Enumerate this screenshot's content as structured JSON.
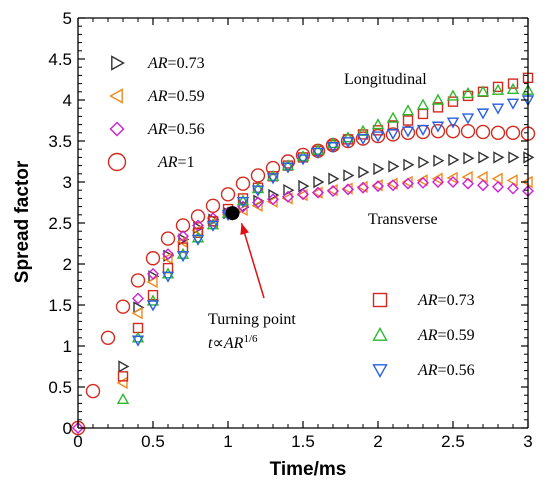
{
  "chart_data": {
    "type": "scatter",
    "xlabel": "Time/ms",
    "ylabel": "Spread factor",
    "xlim": [
      0,
      3
    ],
    "ylim": [
      0,
      5
    ],
    "xticks": [
      "0",
      "0.5",
      "1",
      "1.5",
      "2",
      "2.5",
      "3"
    ],
    "yticks": [
      "0",
      "0.5",
      "1",
      "1.5",
      "2",
      "2.5",
      "3",
      "3.5",
      "4",
      "4.5",
      "5"
    ],
    "grid": false,
    "legend_left": [
      {
        "series": "transverse_073",
        "prefix": "AR",
        "value": "=0.73"
      },
      {
        "series": "transverse_059",
        "prefix": "AR",
        "value": "=0.59"
      },
      {
        "series": "transverse_056",
        "prefix": "AR",
        "value": "=0.56"
      },
      {
        "series": "ar_1",
        "prefix": "AR",
        "value": "=1"
      }
    ],
    "legend_right": [
      {
        "series": "longitudinal_073",
        "prefix": "AR",
        "value": "=0.73"
      },
      {
        "series": "longitudinal_059",
        "prefix": "AR",
        "value": "=0.59"
      },
      {
        "series": "longitudinal_056",
        "prefix": "AR",
        "value": "=0.56"
      }
    ],
    "annotations": {
      "longitudinal": "Longitudinal",
      "transverse": "Transverse",
      "turning_point_line1": "Turning point",
      "turning_point_line2_t": "t",
      "turning_point_line2_prop": "∝",
      "turning_point_line2_ar": "AR",
      "turning_point_line2_exp": "1/6",
      "turning_point": {
        "x": 1.03,
        "y": 2.62
      }
    },
    "series": [
      {
        "id": "ar_1",
        "marker": "circle",
        "color": "#d42a1e",
        "size": 6.5,
        "x": [
          0,
          0.1,
          0.2,
          0.3,
          0.4,
          0.5,
          0.6,
          0.7,
          0.8,
          0.9,
          1.0,
          1.1,
          1.2,
          1.3,
          1.4,
          1.5,
          1.6,
          1.7,
          1.8,
          1.9,
          2.0,
          2.1,
          2.2,
          2.3,
          2.4,
          2.5,
          2.6,
          2.7,
          2.8,
          2.9,
          3.0
        ],
        "y": [
          0,
          0.45,
          1.1,
          1.48,
          1.8,
          2.07,
          2.31,
          2.47,
          2.58,
          2.71,
          2.85,
          2.98,
          3.08,
          3.17,
          3.25,
          3.33,
          3.38,
          3.45,
          3.5,
          3.53,
          3.56,
          3.58,
          3.6,
          3.61,
          3.62,
          3.62,
          3.62,
          3.61,
          3.6,
          3.6,
          3.59
        ]
      },
      {
        "id": "transverse_073",
        "marker": "triangle-right",
        "color": "#333333",
        "size": 5,
        "x": [
          0.3,
          0.4,
          0.5,
          0.6,
          0.7,
          0.8,
          0.9,
          1.0,
          1.1,
          1.2,
          1.3,
          1.4,
          1.5,
          1.6,
          1.7,
          1.8,
          1.9,
          2.0,
          2.1,
          2.2,
          2.3,
          2.4,
          2.5,
          2.6,
          2.7,
          2.8,
          2.9,
          3.0
        ],
        "y": [
          0.75,
          1.47,
          1.85,
          2.1,
          2.3,
          2.44,
          2.54,
          2.62,
          2.69,
          2.77,
          2.84,
          2.9,
          2.95,
          3.0,
          3.04,
          3.08,
          3.12,
          3.16,
          3.19,
          3.21,
          3.24,
          3.26,
          3.27,
          3.29,
          3.3,
          3.3,
          3.3,
          3.3
        ]
      },
      {
        "id": "transverse_059",
        "marker": "triangle-left",
        "color": "#ef8a1f",
        "size": 5,
        "x": [
          0.3,
          0.4,
          0.5,
          0.6,
          0.7,
          0.8,
          0.9,
          1.0,
          1.1,
          1.2,
          1.3,
          1.4,
          1.5,
          1.6,
          1.7,
          1.8,
          1.9,
          2.0,
          2.1,
          2.2,
          2.3,
          2.4,
          2.5,
          2.6,
          2.7,
          2.8,
          2.9,
          3.0
        ],
        "y": [
          0.55,
          1.4,
          1.78,
          2.07,
          2.27,
          2.41,
          2.5,
          2.6,
          2.66,
          2.71,
          2.76,
          2.8,
          2.84,
          2.87,
          2.9,
          2.92,
          2.94,
          2.96,
          2.98,
          3.0,
          3.02,
          3.04,
          3.05,
          3.06,
          3.06,
          3.04,
          3.02,
          3.0
        ]
      },
      {
        "id": "transverse_056",
        "marker": "diamond",
        "color": "#cf1ed6",
        "size": 5,
        "x": [
          0,
          0.4,
          0.5,
          0.6,
          0.7,
          0.8,
          0.9,
          1.0,
          1.1,
          1.2,
          1.3,
          1.4,
          1.5,
          1.6,
          1.7,
          1.8,
          1.9,
          2.0,
          2.1,
          2.2,
          2.3,
          2.4,
          2.5,
          2.6,
          2.7,
          2.8,
          2.9,
          3.0
        ],
        "y": [
          0,
          1.58,
          1.88,
          2.12,
          2.34,
          2.47,
          2.56,
          2.63,
          2.7,
          2.75,
          2.79,
          2.82,
          2.85,
          2.87,
          2.89,
          2.91,
          2.93,
          2.95,
          2.96,
          2.98,
          2.99,
          3.0,
          3.0,
          2.98,
          2.96,
          2.94,
          2.92,
          2.89
        ]
      },
      {
        "id": "longitudinal_073",
        "marker": "square",
        "color": "#d42a1e",
        "size": 4.5,
        "x": [
          0.3,
          0.4,
          0.5,
          0.6,
          0.7,
          0.8,
          0.9,
          1.0,
          1.1,
          1.2,
          1.3,
          1.4,
          1.5,
          1.6,
          1.7,
          1.8,
          1.9,
          2.0,
          2.1,
          2.2,
          2.3,
          2.4,
          2.5,
          2.6,
          2.7,
          2.8,
          2.9,
          3.0
        ],
        "y": [
          0.63,
          1.22,
          1.62,
          1.95,
          2.2,
          2.38,
          2.52,
          2.67,
          2.8,
          2.93,
          3.07,
          3.2,
          3.3,
          3.38,
          3.45,
          3.52,
          3.58,
          3.63,
          3.69,
          3.75,
          3.83,
          3.91,
          3.98,
          4.05,
          4.1,
          4.16,
          4.2,
          4.27
        ]
      },
      {
        "id": "longitudinal_059",
        "marker": "triangle-up",
        "color": "#2eb82e",
        "size": 5,
        "x": [
          0.3,
          0.4,
          0.5,
          0.6,
          0.7,
          0.8,
          0.9,
          1.0,
          1.1,
          1.2,
          1.3,
          1.4,
          1.5,
          1.6,
          1.7,
          1.8,
          1.9,
          2.0,
          2.1,
          2.2,
          2.3,
          2.4,
          2.5,
          2.6,
          2.7,
          2.8,
          2.9,
          3.0
        ],
        "y": [
          0.35,
          1.1,
          1.55,
          1.88,
          2.12,
          2.32,
          2.48,
          2.62,
          2.77,
          2.92,
          3.07,
          3.2,
          3.31,
          3.39,
          3.47,
          3.54,
          3.62,
          3.7,
          3.78,
          3.87,
          3.94,
          4.0,
          4.05,
          4.08,
          4.1,
          4.12,
          4.13,
          4.12
        ]
      },
      {
        "id": "longitudinal_056",
        "marker": "triangle-down",
        "color": "#2a5fe0",
        "size": 5,
        "x": [
          0.4,
          0.5,
          0.6,
          0.7,
          0.8,
          0.9,
          1.0,
          1.1,
          1.2,
          1.3,
          1.4,
          1.5,
          1.6,
          1.7,
          1.8,
          1.9,
          2.0,
          2.1,
          2.2,
          2.3,
          2.4,
          2.5,
          2.6,
          2.7,
          2.8,
          2.9,
          3.0
        ],
        "y": [
          1.07,
          1.5,
          1.85,
          2.1,
          2.3,
          2.47,
          2.6,
          2.76,
          2.9,
          3.05,
          3.18,
          3.28,
          3.36,
          3.43,
          3.49,
          3.53,
          3.56,
          3.59,
          3.62,
          3.64,
          3.68,
          3.73,
          3.78,
          3.84,
          3.9,
          3.96,
          4.0
        ]
      }
    ]
  }
}
